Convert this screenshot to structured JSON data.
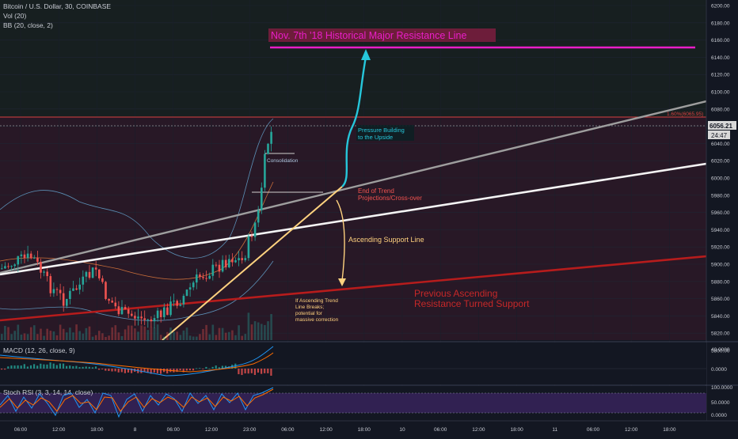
{
  "header": {
    "title": "Bitcoin / U.S. Dollar, 30, COINBASE",
    "vol": "Vol (20)",
    "bb": "BB (20, close, 2)"
  },
  "price_panel": {
    "y_ticks": [
      "6200.00",
      "6180.00",
      "6160.00",
      "6140.00",
      "6120.00",
      "6100.00",
      "6080.00",
      "6060.00",
      "6040.00",
      "6020.00",
      "6000.00",
      "5980.00",
      "5960.00",
      "5940.00",
      "5920.00",
      "5900.00",
      "5880.00",
      "5860.00",
      "5840.00",
      "5820.00",
      "5800.00"
    ],
    "current_price": "6056.21",
    "countdown": "24:47",
    "fib_label": "1.60%(6065.95)",
    "colors": {
      "up": "#26a69a",
      "down": "#ef5350",
      "resistance": "#e91ec8",
      "support_red": "#b71c1c",
      "white_line": "#ffffff",
      "gray_line": "#9e9e9e",
      "trend": "#ffd27f",
      "cyan": "#26c6da"
    }
  },
  "annotations": {
    "headline": "Nov. 7th '18 Historical Major Resistance Line",
    "pressure": [
      "Pressure Building",
      "to the Upside"
    ],
    "consolidation": "Consolidation",
    "end_trend": [
      "End of Trend",
      "Projections/Cross-over"
    ],
    "ascending_support": "Ascending Support Line",
    "if_breaks": [
      "If Ascending Trend",
      "Line Breaks;",
      "potential for",
      "massive correction"
    ],
    "prev_resistance": [
      "Previous Ascending",
      "Resistance Turned Support"
    ]
  },
  "macd": {
    "label": "MACD (12, 26, close, 9)",
    "y_ticks": [
      "40.0000",
      "0.0000"
    ]
  },
  "stoch": {
    "label": "Stoch RSI (3, 3, 14, 14, close)",
    "y_ticks": [
      "100.0000",
      "50.0000",
      "0.0000"
    ]
  },
  "x_axis": {
    "labels": [
      "06:00",
      "12:00",
      "18:00",
      "8",
      "06:00",
      "12:00",
      "23:00",
      "06:00",
      "12:00",
      "18:00",
      "10",
      "06:00",
      "12:00",
      "18:00",
      "11",
      "06:00",
      "12:00",
      "18:00"
    ]
  }
}
